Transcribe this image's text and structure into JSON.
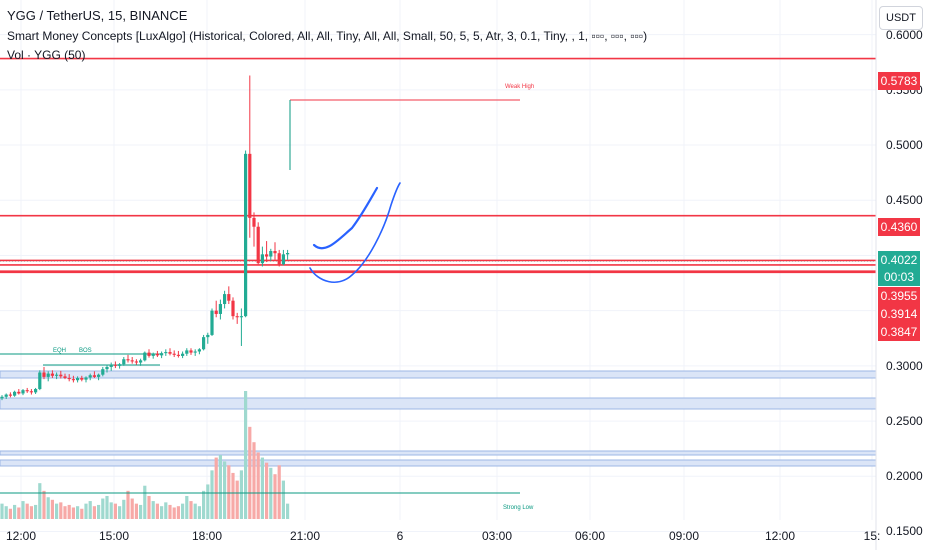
{
  "header": {
    "symbol_line": "YGG / TetherUS, 15, BINANCE",
    "indicator_line": "Smart Money Concepts [LuxAlgo] (Historical, Colored, All, All, Tiny, All, All, Small, 50, 5, 5, Atr, 3, 0.1, Tiny, , 1, ▫▫▫, ▫▫▫, ▫▫▫)",
    "volume_line": "Vol · YGG (50)"
  },
  "quote_currency": "USDT",
  "price_tags": [
    {
      "text": "0.5783",
      "color": "#f23645"
    },
    {
      "text": "0.4360",
      "color": "#f23645"
    },
    {
      "text": "0.4022",
      "color": "#22ab94"
    },
    {
      "text": "00:03",
      "color": "#22ab94"
    },
    {
      "text": "0.3955",
      "color": "#f23645"
    },
    {
      "text": "0.3914",
      "color": "#f23645"
    },
    {
      "text": "0.3847",
      "color": "#f23645"
    }
  ],
  "annotations": {
    "weak_high": "Weak High",
    "strong_low": "Strong Low",
    "eqh": "EQH",
    "bos": "BOS"
  },
  "colors": {
    "up": "#22ab94",
    "down": "#f23645",
    "vol_up": "#9fd9cf",
    "vol_down": "#f7a9a7",
    "drawing": "#2962ff",
    "zone": "#c3d4f2"
  },
  "chart_data": {
    "type": "candlestick",
    "title": "YGG / TetherUS, 15, BINANCE",
    "x_ticks": [
      "12:00",
      "15:00",
      "18:00",
      "21:00",
      "6",
      "03:00",
      "06:00",
      "09:00",
      "12:00",
      "15:"
    ],
    "y_ticks": [
      "0.6000",
      "0.5500",
      "0.5000",
      "0.4500",
      "0.3000",
      "0.2500",
      "0.2000",
      "0.1500"
    ],
    "ylim": [
      0.145,
      0.625
    ],
    "ohlc": [
      [
        0.2705,
        0.2735,
        0.269,
        0.272
      ],
      [
        0.272,
        0.275,
        0.27,
        0.274
      ],
      [
        0.274,
        0.276,
        0.2715,
        0.273
      ],
      [
        0.273,
        0.2775,
        0.272,
        0.2765
      ],
      [
        0.2765,
        0.279,
        0.274,
        0.275
      ],
      [
        0.275,
        0.279,
        0.2735,
        0.278
      ],
      [
        0.278,
        0.28,
        0.2755,
        0.277
      ],
      [
        0.277,
        0.279,
        0.274,
        0.276
      ],
      [
        0.276,
        0.28,
        0.2745,
        0.279
      ],
      [
        0.279,
        0.296,
        0.278,
        0.294
      ],
      [
        0.294,
        0.299,
        0.288,
        0.29
      ],
      [
        0.29,
        0.295,
        0.286,
        0.293
      ],
      [
        0.293,
        0.296,
        0.289,
        0.291
      ],
      [
        0.291,
        0.294,
        0.288,
        0.292
      ],
      [
        0.292,
        0.2955,
        0.2885,
        0.2905
      ],
      [
        0.2905,
        0.293,
        0.288,
        0.289
      ],
      [
        0.289,
        0.2925,
        0.286,
        0.288
      ],
      [
        0.288,
        0.291,
        0.285,
        0.287
      ],
      [
        0.287,
        0.2905,
        0.285,
        0.289
      ],
      [
        0.289,
        0.291,
        0.286,
        0.2875
      ],
      [
        0.2875,
        0.2905,
        0.285,
        0.2895
      ],
      [
        0.2895,
        0.293,
        0.287,
        0.2915
      ],
      [
        0.2915,
        0.295,
        0.289,
        0.29
      ],
      [
        0.29,
        0.293,
        0.287,
        0.292
      ],
      [
        0.292,
        0.299,
        0.2905,
        0.297
      ],
      [
        0.297,
        0.301,
        0.294,
        0.299
      ],
      [
        0.299,
        0.303,
        0.2955,
        0.301
      ],
      [
        0.301,
        0.304,
        0.298,
        0.3
      ],
      [
        0.3,
        0.3025,
        0.2975,
        0.3015
      ],
      [
        0.3015,
        0.308,
        0.3,
        0.306
      ],
      [
        0.306,
        0.31,
        0.303,
        0.305
      ],
      [
        0.305,
        0.308,
        0.302,
        0.304
      ],
      [
        0.304,
        0.306,
        0.301,
        0.303
      ],
      [
        0.303,
        0.3065,
        0.3,
        0.305
      ],
      [
        0.305,
        0.313,
        0.304,
        0.312
      ],
      [
        0.312,
        0.315,
        0.3075,
        0.309
      ],
      [
        0.309,
        0.312,
        0.3065,
        0.311
      ],
      [
        0.311,
        0.3135,
        0.308,
        0.3095
      ],
      [
        0.3095,
        0.313,
        0.307,
        0.3115
      ],
      [
        0.3115,
        0.315,
        0.309,
        0.3125
      ],
      [
        0.3125,
        0.316,
        0.3095,
        0.311
      ],
      [
        0.311,
        0.314,
        0.308,
        0.31
      ],
      [
        0.31,
        0.3135,
        0.3075,
        0.309
      ],
      [
        0.309,
        0.313,
        0.307,
        0.311
      ],
      [
        0.311,
        0.316,
        0.309,
        0.314
      ],
      [
        0.314,
        0.316,
        0.31,
        0.312
      ],
      [
        0.312,
        0.315,
        0.309,
        0.313
      ],
      [
        0.313,
        0.316,
        0.3105,
        0.315
      ],
      [
        0.315,
        0.328,
        0.314,
        0.326
      ],
      [
        0.326,
        0.33,
        0.32,
        0.328
      ],
      [
        0.328,
        0.352,
        0.327,
        0.35
      ],
      [
        0.35,
        0.359,
        0.344,
        0.347
      ],
      [
        0.347,
        0.36,
        0.342,
        0.356
      ],
      [
        0.356,
        0.368,
        0.352,
        0.365
      ],
      [
        0.365,
        0.372,
        0.356,
        0.359
      ],
      [
        0.359,
        0.362,
        0.342,
        0.345
      ],
      [
        0.345,
        0.348,
        0.338,
        0.344
      ],
      [
        0.344,
        0.352,
        0.318,
        0.345
      ],
      [
        0.345,
        0.495,
        0.344,
        0.492
      ],
      [
        0.492,
        0.563,
        0.416,
        0.434
      ],
      [
        0.434,
        0.439,
        0.408,
        0.426
      ],
      [
        0.426,
        0.43,
        0.392,
        0.393
      ],
      [
        0.393,
        0.408,
        0.39,
        0.401
      ],
      [
        0.401,
        0.413,
        0.394,
        0.399
      ],
      [
        0.399,
        0.406,
        0.395,
        0.404
      ],
      [
        0.404,
        0.412,
        0.396,
        0.402
      ],
      [
        0.402,
        0.405,
        0.39,
        0.392
      ],
      [
        0.392,
        0.405,
        0.391,
        0.401
      ],
      [
        0.401,
        0.405,
        0.396,
        0.4022
      ]
    ],
    "volume": [
      0.12,
      0.1,
      0.08,
      0.11,
      0.09,
      0.14,
      0.12,
      0.1,
      0.11,
      0.28,
      0.22,
      0.17,
      0.15,
      0.12,
      0.13,
      0.1,
      0.11,
      0.09,
      0.1,
      0.08,
      0.12,
      0.14,
      0.1,
      0.11,
      0.16,
      0.18,
      0.13,
      0.12,
      0.1,
      0.15,
      0.22,
      0.16,
      0.12,
      0.11,
      0.26,
      0.18,
      0.14,
      0.12,
      0.1,
      0.13,
      0.11,
      0.09,
      0.1,
      0.12,
      0.18,
      0.14,
      0.12,
      0.1,
      0.22,
      0.27,
      0.38,
      0.48,
      0.5,
      0.45,
      0.42,
      0.36,
      0.3,
      0.38,
      1.0,
      0.72,
      0.6,
      0.52,
      0.48,
      0.44,
      0.4,
      0.35,
      0.42,
      0.3,
      0.12
    ],
    "levels": [
      {
        "price": 0.5783,
        "color": "#f23645"
      },
      {
        "price": 0.436,
        "color": "#f23645"
      },
      {
        "price": 0.3955,
        "color": "#f23645"
      },
      {
        "price": 0.3914,
        "color": "#f23645"
      },
      {
        "price": 0.3847,
        "color": "#f23645"
      }
    ],
    "grid": true
  }
}
